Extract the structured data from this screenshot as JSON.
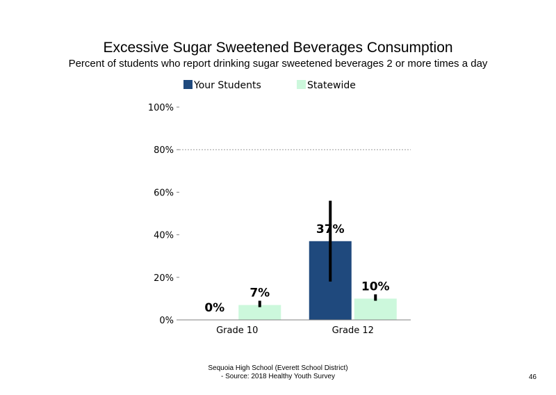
{
  "chart_data": {
    "type": "bar",
    "title": "Excessive Sugar Sweetened Beverages Consumption",
    "subtitle": "Percent of students who report drinking sugar sweetened beverages 2 or more times a day",
    "categories": [
      "Grade 10",
      "Grade 12"
    ],
    "series": [
      {
        "name": "Your Students",
        "color": "#1f497d",
        "values": [
          0,
          37
        ],
        "labels": [
          "0%",
          "37%"
        ],
        "error_low": [
          0,
          18
        ],
        "error_high": [
          0,
          56
        ]
      },
      {
        "name": "Statewide",
        "color": "#ccf8dc",
        "values": [
          7,
          10
        ],
        "labels": [
          "7%",
          "10%"
        ],
        "error_low": [
          6,
          9
        ],
        "error_high": [
          9,
          12
        ]
      }
    ],
    "ylim": [
      0,
      100
    ],
    "yticks": [
      0,
      20,
      40,
      60,
      80,
      100
    ],
    "ytick_labels": [
      "0%",
      "20%",
      "40%",
      "60%",
      "80%",
      "100%"
    ],
    "gridlines": [
      80
    ],
    "legend_position": "top"
  },
  "footer": {
    "line1": "Sequoia High School (Everett School District)",
    "line2": "- Source: 2018 Healthy Youth Survey"
  },
  "page_number": "46"
}
